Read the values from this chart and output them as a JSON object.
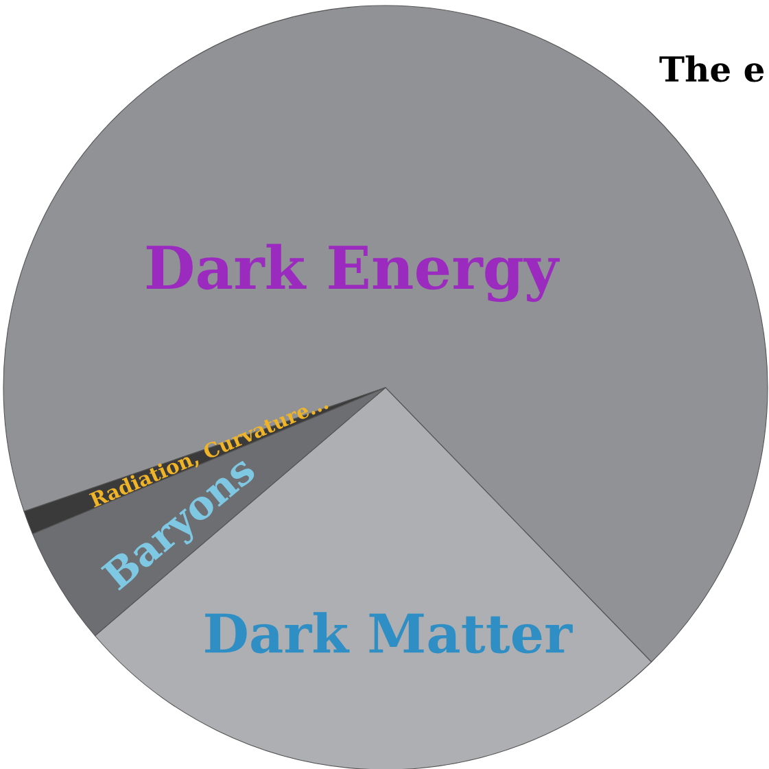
{
  "chart_data": {
    "type": "pie",
    "title": "The e",
    "categories": [
      "Dark Energy",
      "Dark Matter",
      "Baryons",
      "Radiation, Curvature..."
    ],
    "values": [
      68,
      26,
      5,
      1
    ],
    "colors": [
      "#909296",
      "#aeafb2",
      "#6d6e71",
      "#3a3a3a"
    ]
  }
}
